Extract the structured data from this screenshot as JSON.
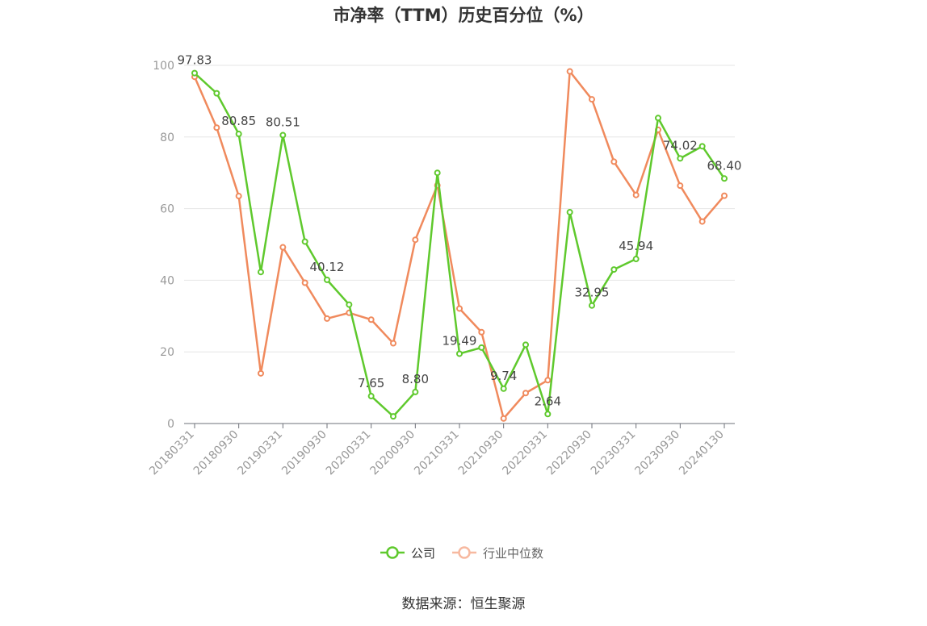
{
  "chart_data": {
    "type": "line",
    "title": "市净率（TTM）历史百分位（%）",
    "source": "数据来源：恒生聚源",
    "ylim": [
      0,
      100
    ],
    "yticks": [
      0,
      20,
      40,
      60,
      80,
      100
    ],
    "grid": true,
    "legend_position": "bottom",
    "x_tick_labels": [
      "20180331",
      "20180930",
      "20190331",
      "20190930",
      "20200331",
      "20200930",
      "20210331",
      "20210930",
      "20220331",
      "20220930",
      "20230331",
      "20230930",
      "20240130"
    ],
    "x": [
      "20180331",
      "20180630",
      "20180930",
      "20181231",
      "20190331",
      "20190630",
      "20190930",
      "20191231",
      "20200331",
      "20200630",
      "20200930",
      "20201231",
      "20210331",
      "20210630",
      "20210930",
      "20211231",
      "20220331",
      "20220630",
      "20220930",
      "20221231",
      "20230331",
      "20230630",
      "20230930",
      "20231231",
      "20240130"
    ],
    "series": [
      {
        "name": "公司",
        "color": "#5fc92d",
        "values": [
          97.83,
          92.2,
          80.85,
          42.3,
          80.51,
          50.8,
          40.12,
          33.2,
          7.65,
          2.0,
          8.8,
          70.0,
          19.49,
          21.2,
          9.74,
          22.0,
          2.64,
          59.0,
          32.95,
          43.0,
          45.94,
          85.3,
          74.02,
          77.4,
          68.4
        ],
        "labels": [
          "97.83",
          "",
          "80.85",
          "",
          "80.51",
          "",
          "40.12",
          "",
          "7.65",
          "",
          "8.80",
          "",
          "19.49",
          "",
          "9.74",
          "",
          "2.64",
          "",
          "32.95",
          "",
          "45.94",
          "",
          "74.02",
          "",
          "68.40"
        ]
      },
      {
        "name": "行业中位数",
        "color": "#f08a5d",
        "values": [
          96.8,
          82.6,
          63.5,
          14.0,
          49.2,
          39.3,
          29.3,
          30.9,
          29.0,
          22.4,
          51.3,
          66.5,
          32.1,
          25.5,
          1.4,
          8.5,
          12.1,
          98.3,
          90.5,
          73.1,
          63.8,
          82.0,
          66.4,
          56.4,
          63.6
        ]
      }
    ]
  }
}
